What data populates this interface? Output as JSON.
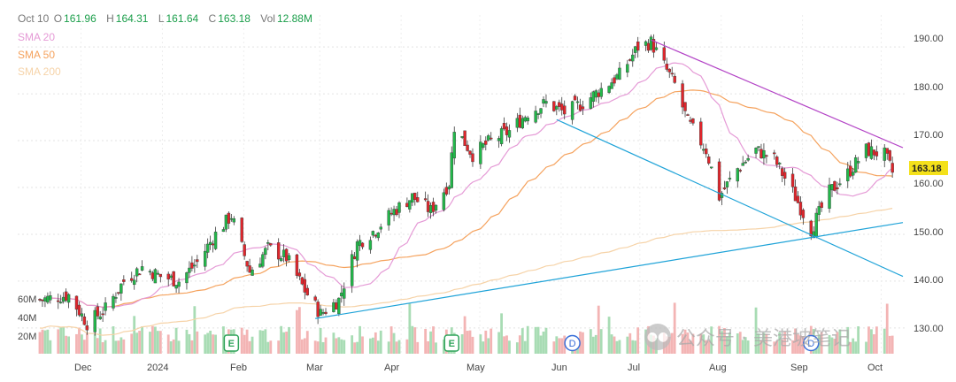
{
  "header": {
    "date": "Oct 10",
    "open_label": "O",
    "open": "161.96",
    "high_label": "H",
    "high": "164.31",
    "low_label": "L",
    "low": "161.64",
    "close_label": "C",
    "close": "163.18",
    "vol_label": "Vol",
    "vol": "12.88M"
  },
  "legend": [
    {
      "label": "SMA 20",
      "color": "#e59ad6"
    },
    {
      "label": "SMA 50",
      "color": "#f5a25d"
    },
    {
      "label": "SMA 200",
      "color": "#f6d3a8"
    }
  ],
  "watermark": "公众号 · 美港坡笔记",
  "chart_data": {
    "type": "candlestick",
    "x_tick_labels": [
      "Dec",
      "2024",
      "Feb",
      "Mar",
      "Apr",
      "May",
      "Jun",
      "Jul",
      "Aug",
      "Sep",
      "Oct"
    ],
    "y_tick_labels": [
      "190.00",
      "180.00",
      "170.00",
      "160.00",
      "150.00",
      "140.00",
      "130.00"
    ],
    "y_ticks": [
      190,
      180,
      170,
      160,
      150,
      140,
      130
    ],
    "ylim": [
      126,
      194
    ],
    "volume_tick_labels": [
      "60M",
      "40M",
      "20M"
    ],
    "volume_ticks": [
      60,
      40,
      20
    ],
    "last_price": "163.18",
    "close_anchors": [
      [
        "2023-11-20",
        136
      ],
      [
        "2023-12-01",
        137
      ],
      [
        "2023-12-08",
        131
      ],
      [
        "2023-12-15",
        134
      ],
      [
        "2023-12-22",
        140
      ],
      [
        "2023-12-29",
        143
      ],
      [
        "2024-01-05",
        141
      ],
      [
        "2024-01-12",
        140
      ],
      [
        "2024-01-19",
        144
      ],
      [
        "2024-01-26",
        150
      ],
      [
        "2024-02-01",
        154
      ],
      [
        "2024-02-08",
        142
      ],
      [
        "2024-02-15",
        147
      ],
      [
        "2024-02-22",
        145
      ],
      [
        "2024-02-29",
        138
      ],
      [
        "2024-03-06",
        133
      ],
      [
        "2024-03-13",
        136
      ],
      [
        "2024-03-20",
        148
      ],
      [
        "2024-03-27",
        151
      ],
      [
        "2024-04-03",
        155
      ],
      [
        "2024-04-10",
        158
      ],
      [
        "2024-04-17",
        155
      ],
      [
        "2024-04-24",
        161
      ],
      [
        "2024-04-26",
        173
      ],
      [
        "2024-05-03",
        167
      ],
      [
        "2024-05-10",
        170
      ],
      [
        "2024-05-17",
        172
      ],
      [
        "2024-05-24",
        176
      ],
      [
        "2024-05-31",
        178
      ],
      [
        "2024-06-07",
        176
      ],
      [
        "2024-06-14",
        178
      ],
      [
        "2024-06-21",
        181
      ],
      [
        "2024-06-28",
        184
      ],
      [
        "2024-07-05",
        190
      ],
      [
        "2024-07-10",
        191
      ],
      [
        "2024-07-15",
        186
      ],
      [
        "2024-07-19",
        182
      ],
      [
        "2024-07-24",
        174
      ],
      [
        "2024-07-31",
        168
      ],
      [
        "2024-08-05",
        158
      ],
      [
        "2024-08-12",
        164
      ],
      [
        "2024-08-19",
        168
      ],
      [
        "2024-08-26",
        166
      ],
      [
        "2024-09-03",
        158
      ],
      [
        "2024-09-09",
        151
      ],
      [
        "2024-09-16",
        159
      ],
      [
        "2024-09-23",
        163
      ],
      [
        "2024-09-30",
        168
      ],
      [
        "2024-10-07",
        167
      ],
      [
        "2024-10-10",
        163.18
      ]
    ],
    "trendlines": [
      {
        "color": "#b343c6",
        "from": [
          "2024-07-10",
          191.5
        ],
        "to": [
          "2024-10-14",
          168.5
        ]
      },
      {
        "color": "#1fa3d8",
        "from": [
          "2024-06-04",
          174.5
        ],
        "to": [
          "2024-10-14",
          141
        ]
      },
      {
        "color": "#1fa3d8",
        "from": [
          "2024-03-04",
          132
        ],
        "to": [
          "2024-10-14",
          152.5
        ]
      }
    ],
    "event_markers": [
      {
        "label": "E",
        "date": "2024-02-01"
      },
      {
        "label": "E",
        "date": "2024-04-25"
      },
      {
        "label": "D",
        "date": "2024-06-10"
      },
      {
        "label": "D",
        "date": "2024-09-09"
      }
    ]
  }
}
